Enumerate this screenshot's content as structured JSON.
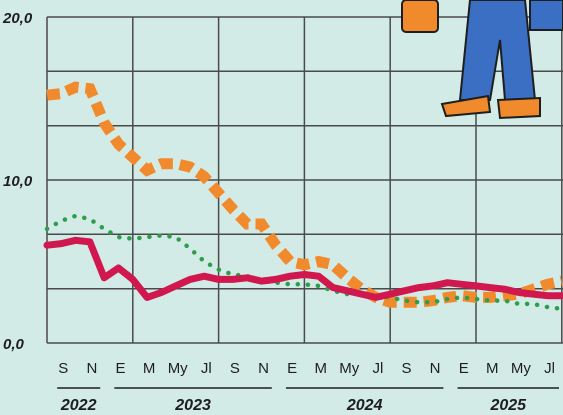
{
  "chart_data": {
    "type": "line",
    "categories": [
      null,
      "S",
      null,
      "N",
      null,
      "E",
      null,
      "M",
      null,
      "My",
      null,
      "Jl",
      null,
      "S",
      null,
      "N",
      null,
      "E",
      null,
      "M",
      null,
      "My",
      null,
      "Jl",
      null,
      "S",
      null,
      "N",
      null,
      "E",
      null,
      "M",
      null,
      "My",
      null,
      "Jl",
      null
    ],
    "years": [
      "2022",
      "2023",
      "2024",
      "2025"
    ],
    "ylim": [
      0,
      20
    ],
    "yticks": [
      {
        "value": 0,
        "label": "0,0"
      },
      {
        "value": 10,
        "label": "10,0"
      },
      {
        "value": 20,
        "label": "20,0"
      }
    ],
    "ygrid": [
      3.33,
      6.67,
      13.33,
      16.67
    ],
    "grid": true,
    "series": [
      {
        "color": "#f08a2c",
        "style": "dashed",
        "values": [
          15.2,
          15.3,
          15.7,
          15.6,
          13.5,
          12.2,
          11.4,
          10.6,
          11.0,
          11.0,
          10.8,
          10.2,
          9.2,
          8.2,
          7.3,
          7.3,
          6.0,
          5.0,
          4.8,
          5.0,
          4.8,
          4.0,
          3.3,
          2.8,
          2.5,
          2.5,
          2.5,
          2.6,
          2.8,
          2.9,
          2.8,
          2.8,
          2.9,
          3.0,
          3.3,
          3.6,
          3.8
        ]
      },
      {
        "color": "#2e9e4a",
        "style": "dotted",
        "values": [
          7.0,
          7.5,
          7.8,
          7.6,
          7.0,
          6.5,
          6.4,
          6.5,
          6.6,
          6.5,
          5.8,
          5.0,
          4.5,
          4.2,
          4.1,
          3.8,
          3.7,
          3.6,
          3.6,
          3.5,
          3.2,
          3.0,
          3.0,
          2.9,
          2.8,
          2.6,
          2.5,
          2.5,
          2.7,
          2.8,
          2.7,
          2.6,
          2.6,
          2.4,
          2.4,
          2.2,
          2.1
        ]
      },
      {
        "color": "#d0174e",
        "style": "solid",
        "values": [
          6.0,
          6.1,
          6.3,
          6.2,
          4.0,
          4.6,
          3.9,
          2.8,
          3.1,
          3.5,
          3.9,
          4.1,
          3.9,
          3.9,
          4.0,
          3.8,
          3.9,
          4.1,
          4.2,
          4.1,
          3.4,
          3.2,
          3.0,
          2.8,
          3.0,
          3.2,
          3.4,
          3.5,
          3.7,
          3.6,
          3.5,
          3.4,
          3.3,
          3.1,
          3.0,
          2.9,
          2.9
        ]
      }
    ]
  }
}
